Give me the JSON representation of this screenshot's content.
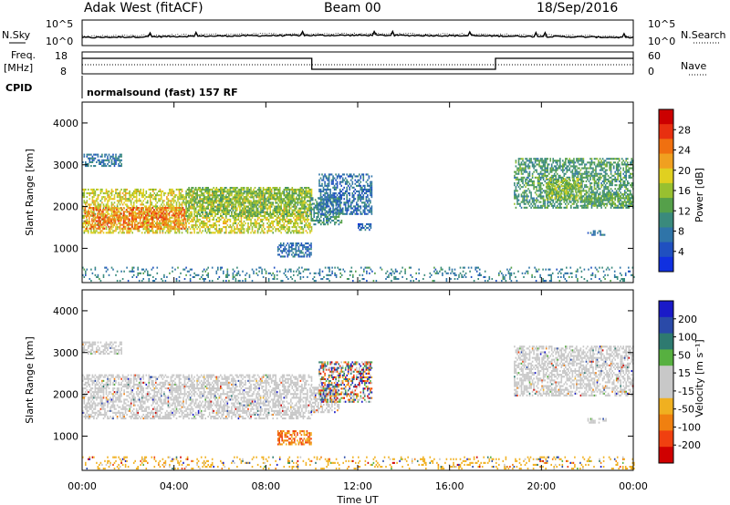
{
  "header": {
    "station": "Adak West (fitACF)",
    "beam": "Beam 00",
    "date": "18/Sep/2016"
  },
  "top_panels": {
    "nsky_label": "N.Sky",
    "nsearch_label": "N.Search",
    "left_scale": [
      "10^5",
      "10^0"
    ],
    "right_scale": [
      "10^5",
      "10^0"
    ],
    "freq_label": "Freq.",
    "freq_unit": "[MHz]",
    "freq_ticks": [
      "18",
      "8"
    ],
    "nave_label": "Nave",
    "nave_ticks": [
      "60",
      "0"
    ],
    "cpid_label": "CPID",
    "cpid_text": "normalsound (fast) 157 RF"
  },
  "colors": {
    "power_scale": [
      "#1030e0",
      "#2050c0",
      "#2f74a8",
      "#3a8a7c",
      "#55a04a",
      "#98c030",
      "#e0d020",
      "#f0a020",
      "#f07010",
      "#e83010",
      "#cc0000"
    ],
    "velocity_scale": [
      "#1a1ac8",
      "#2a4aa8",
      "#2e7a70",
      "#57b040",
      "#c8c8c8",
      "#c8c8c8",
      "#f0b020",
      "#f08010",
      "#f04010",
      "#d00000"
    ],
    "ground": "#c8c8c8"
  },
  "chart_data": [
    {
      "type": "heatmap",
      "name": "power",
      "ylabel": "Slant Range [km]",
      "ylim": [
        180,
        4500
      ],
      "yticks": [
        1000,
        2000,
        3000,
        4000
      ],
      "xlim": [
        0,
        24
      ],
      "colorbar": {
        "label": "Power [dB]",
        "range": [
          0,
          32
        ],
        "ticks": [
          "4",
          "8",
          "12",
          "16",
          "20",
          "24",
          "28"
        ],
        "tick_values": [
          4,
          8,
          12,
          16,
          20,
          24,
          28
        ]
      },
      "bands": [
        {
          "t": [
            0.0,
            1.7
          ],
          "r": [
            2950,
            3250
          ],
          "v": 7
        },
        {
          "t": [
            0.0,
            10.0
          ],
          "r": [
            1350,
            2400
          ],
          "v": 18
        },
        {
          "t": [
            0.1,
            4.5
          ],
          "r": [
            1450,
            1950
          ],
          "v": 25
        },
        {
          "t": [
            4.5,
            9.9
          ],
          "r": [
            1750,
            2450
          ],
          "v": 14
        },
        {
          "t": [
            9.95,
            11.3
          ],
          "r": [
            1550,
            2200
          ],
          "v": 10
        },
        {
          "t": [
            8.5,
            10.0
          ],
          "r": [
            780,
            1100
          ],
          "v": 6
        },
        {
          "t": [
            10.3,
            12.6
          ],
          "r": [
            1800,
            2750
          ],
          "v": 6
        },
        {
          "t": [
            12.0,
            12.6
          ],
          "r": [
            1420,
            1560
          ],
          "v": 5
        },
        {
          "t": [
            18.8,
            24.0
          ],
          "r": [
            1950,
            3150
          ],
          "v": 11
        },
        {
          "t": [
            20.2,
            21.7
          ],
          "r": [
            2150,
            2650
          ],
          "v": 16
        },
        {
          "t": [
            21.8,
            24.0
          ],
          "r": [
            2000,
            2300
          ],
          "v": 13
        },
        {
          "t": [
            22.0,
            22.8
          ],
          "r": [
            1300,
            1420
          ],
          "v": 6
        },
        {
          "t": [
            0.0,
            24.0
          ],
          "r": [
            200,
            550
          ],
          "v": 8
        }
      ]
    },
    {
      "type": "heatmap",
      "name": "velocity",
      "ylabel": "Slant Range [km]",
      "ylim": [
        180,
        4500
      ],
      "yticks": [
        1000,
        2000,
        3000,
        4000
      ],
      "xlim": [
        0,
        24
      ],
      "xticks": [
        "00:00",
        "04:00",
        "08:00",
        "12:00",
        "16:00",
        "20:00",
        "00:00"
      ],
      "xtick_values": [
        0,
        4,
        8,
        12,
        16,
        20,
        24
      ],
      "xlabel": "Time UT",
      "colorbar": {
        "label": "Velocity [m s⁻¹]",
        "range": [
          -250,
          250
        ],
        "ticks": [
          "200",
          "100",
          "50",
          "15",
          "-15",
          "-50",
          "-100",
          "-200"
        ]
      },
      "bands": [
        {
          "t": [
            0.0,
            1.7
          ],
          "r": [
            2950,
            3250
          ],
          "v": "ground"
        },
        {
          "t": [
            0.0,
            10.0
          ],
          "r": [
            1400,
            2450
          ],
          "v": "ground"
        },
        {
          "t": [
            9.95,
            11.2
          ],
          "r": [
            1550,
            2200
          ],
          "v": "ground"
        },
        {
          "t": [
            8.5,
            10.0
          ],
          "r": [
            780,
            1100
          ],
          "v": "neg"
        },
        {
          "t": [
            10.3,
            12.6
          ],
          "r": [
            1800,
            2750
          ],
          "v": "mixed"
        },
        {
          "t": [
            18.8,
            24.0
          ],
          "r": [
            1950,
            3150
          ],
          "v": "ground"
        },
        {
          "t": [
            22.0,
            22.8
          ],
          "r": [
            1300,
            1420
          ],
          "v": "ground"
        },
        {
          "t": [
            0.0,
            24.0
          ],
          "r": [
            200,
            500
          ],
          "v": "lowneg"
        }
      ]
    }
  ]
}
